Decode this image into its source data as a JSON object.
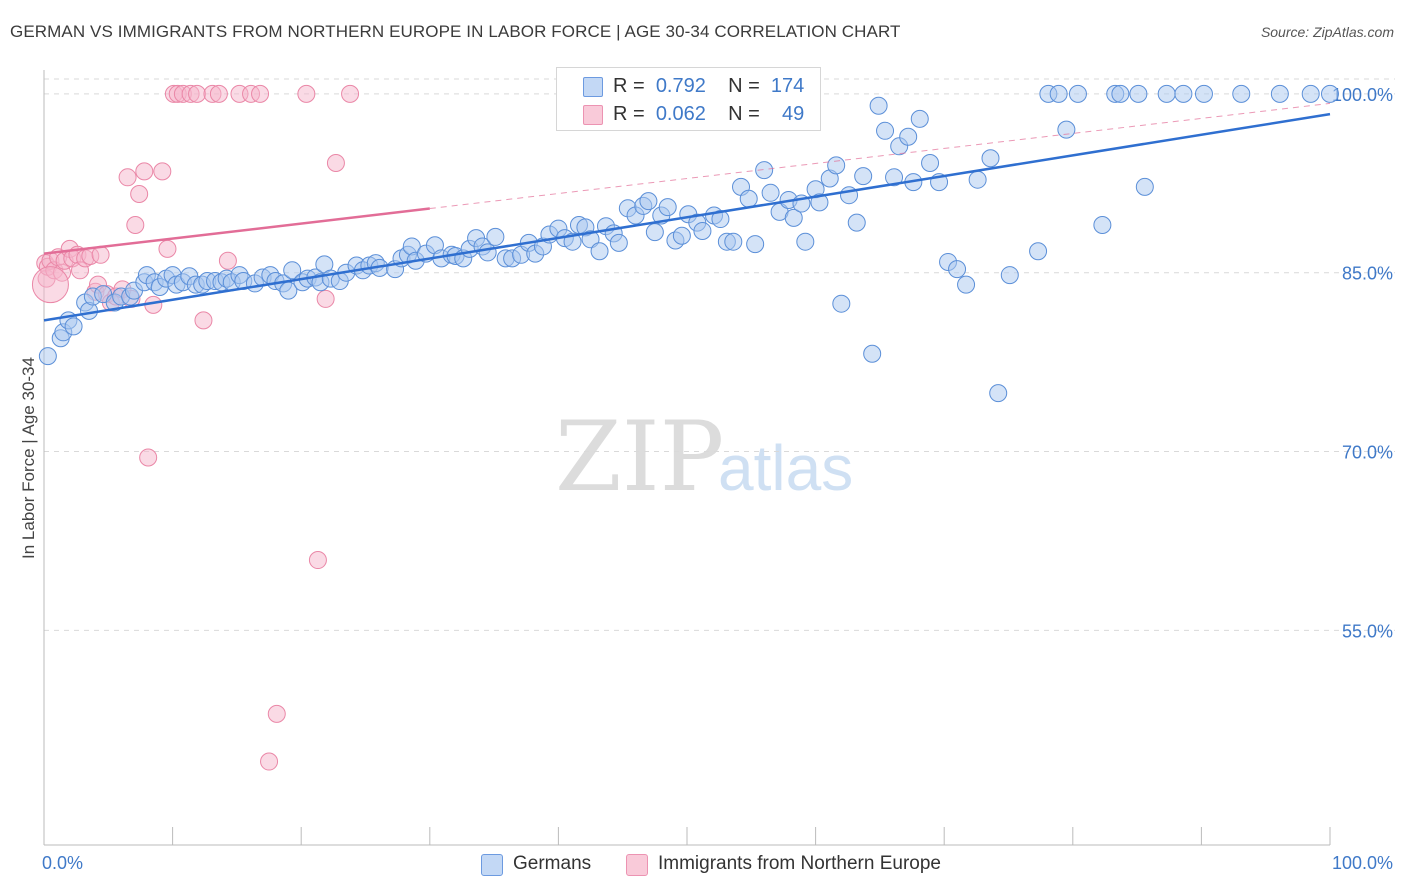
{
  "title": "GERMAN VS IMMIGRANTS FROM NORTHERN EUROPE IN LABOR FORCE | AGE 30-34 CORRELATION CHART",
  "source_prefix": "Source: ",
  "source_name": "ZipAtlas.com",
  "watermark": {
    "zip": "ZIP",
    "atlas": "atlas"
  },
  "legend_top": [
    {
      "r_label": "R =",
      "r_value": "0.792",
      "n_label": "N =",
      "n_value": "174"
    },
    {
      "r_label": "R =",
      "r_value": "0.062",
      "n_label": "N =",
      "n_value": "49"
    }
  ],
  "legend_bottom": [
    "Germans",
    "Immigrants from Northern Europe"
  ],
  "colors": {
    "blue_fill": "#a9c7f0",
    "blue_stroke": "#5b8fd8",
    "blue_line": "#2f6fd0",
    "pink_fill": "#f6b6cb",
    "pink_stroke": "#ea87a7",
    "pink_line": "#e26d97",
    "axis_label": "#3f79c8",
    "grid": "#d9d9d9"
  },
  "chart_data": {
    "type": "scatter",
    "title": "GERMAN VS IMMIGRANTS FROM NORTHERN EUROPE IN LABOR FORCE | AGE 30-34 CORRELATION CHART",
    "xlabel": "",
    "ylabel": "In Labor Force | Age 30-34",
    "xlim": [
      0,
      100
    ],
    "ylim": [
      37,
      102
    ],
    "x_tick_labels": [
      "0.0%",
      "100.0%"
    ],
    "y_ticks": [
      55,
      70,
      85,
      100
    ],
    "y_tick_labels": [
      "55.0%",
      "70.0%",
      "85.0%",
      "100.0%"
    ],
    "grid": true,
    "legend_placement": "bottom",
    "series": [
      {
        "name": "Germans",
        "trend": {
          "x": [
            0,
            100
          ],
          "y": [
            81.0,
            98.3
          ]
        },
        "points": [
          [
            0.3,
            78
          ],
          [
            1.3,
            79.5
          ],
          [
            1.5,
            80
          ],
          [
            1.9,
            81
          ],
          [
            2.3,
            80.5
          ],
          [
            3.2,
            82.5
          ],
          [
            3.5,
            81.8
          ],
          [
            3.8,
            83
          ],
          [
            4.6,
            83.2
          ],
          [
            5.5,
            82.5
          ],
          [
            6,
            83
          ],
          [
            6.7,
            83
          ],
          [
            7,
            83.5
          ],
          [
            7.8,
            84.2
          ],
          [
            8,
            84.8
          ],
          [
            8.6,
            84.2
          ],
          [
            9,
            83.8
          ],
          [
            9.5,
            84.5
          ],
          [
            10,
            84.8
          ],
          [
            10.3,
            84
          ],
          [
            10.8,
            84.2
          ],
          [
            11.3,
            84.7
          ],
          [
            11.8,
            84
          ],
          [
            12.3,
            84
          ],
          [
            12.7,
            84.3
          ],
          [
            13.3,
            84.3
          ],
          [
            13.8,
            84.2
          ],
          [
            14.2,
            84.5
          ],
          [
            14.6,
            84.2
          ],
          [
            15.2,
            84.8
          ],
          [
            15.5,
            84.3
          ],
          [
            16.4,
            84.1
          ],
          [
            17,
            84.6
          ],
          [
            17.6,
            84.8
          ],
          [
            18,
            84.3
          ],
          [
            18.6,
            84.1
          ],
          [
            19,
            83.5
          ],
          [
            19.3,
            85.2
          ],
          [
            20.1,
            84.2
          ],
          [
            20.5,
            84.5
          ],
          [
            21.1,
            84.6
          ],
          [
            21.5,
            84.2
          ],
          [
            21.8,
            85.7
          ],
          [
            22.3,
            84.5
          ],
          [
            23,
            84.3
          ],
          [
            23.5,
            85
          ],
          [
            24.3,
            85.6
          ],
          [
            24.8,
            85.2
          ],
          [
            25.3,
            85.6
          ],
          [
            25.8,
            85.8
          ],
          [
            26.1,
            85.4
          ],
          [
            27.3,
            85.3
          ],
          [
            27.8,
            86.2
          ],
          [
            28.3,
            86.5
          ],
          [
            28.6,
            87.2
          ],
          [
            28.9,
            86
          ],
          [
            29.7,
            86.6
          ],
          [
            30.4,
            87.3
          ],
          [
            30.9,
            86.2
          ],
          [
            31.7,
            86.5
          ],
          [
            32,
            86.4
          ],
          [
            32.6,
            86.2
          ],
          [
            33.1,
            87
          ],
          [
            33.6,
            87.9
          ],
          [
            34.1,
            87.2
          ],
          [
            34.5,
            86.7
          ],
          [
            35.1,
            88
          ],
          [
            35.9,
            86.2
          ],
          [
            36.4,
            86.2
          ],
          [
            37.1,
            86.5
          ],
          [
            37.7,
            87.5
          ],
          [
            38.2,
            86.6
          ],
          [
            38.8,
            87.2
          ],
          [
            39.3,
            88.2
          ],
          [
            40,
            88.7
          ],
          [
            40.5,
            87.9
          ],
          [
            41.1,
            87.6
          ],
          [
            41.6,
            89
          ],
          [
            42.1,
            88.8
          ],
          [
            42.5,
            87.8
          ],
          [
            43.2,
            86.8
          ],
          [
            43.7,
            88.9
          ],
          [
            44.3,
            88.3
          ],
          [
            44.7,
            87.5
          ],
          [
            45.4,
            90.4
          ],
          [
            46,
            89.8
          ],
          [
            46.6,
            90.6
          ],
          [
            47,
            91
          ],
          [
            47.5,
            88.4
          ],
          [
            48,
            89.8
          ],
          [
            48.5,
            90.5
          ],
          [
            49.1,
            87.7
          ],
          [
            49.6,
            88.1
          ],
          [
            50.1,
            89.9
          ],
          [
            50.8,
            89.2
          ],
          [
            51.2,
            88.5
          ],
          [
            52.1,
            89.8
          ],
          [
            52.6,
            89.5
          ],
          [
            53.1,
            87.6
          ],
          [
            53.6,
            87.6
          ],
          [
            54.2,
            92.2
          ],
          [
            54.8,
            91.2
          ],
          [
            55.3,
            87.4
          ],
          [
            56,
            93.6
          ],
          [
            56.5,
            91.7
          ],
          [
            57.2,
            90.1
          ],
          [
            57.9,
            91.1
          ],
          [
            58.3,
            89.6
          ],
          [
            58.9,
            90.8
          ],
          [
            59.2,
            87.6
          ],
          [
            60,
            92
          ],
          [
            60.3,
            90.9
          ],
          [
            61.1,
            92.9
          ],
          [
            61.6,
            94
          ],
          [
            62,
            82.4
          ],
          [
            62.6,
            91.5
          ],
          [
            63.2,
            89.2
          ],
          [
            63.7,
            93.1
          ],
          [
            64.4,
            78.2
          ],
          [
            64.9,
            99
          ],
          [
            65.4,
            96.9
          ],
          [
            66.1,
            93
          ],
          [
            66.5,
            95.6
          ],
          [
            67.2,
            96.4
          ],
          [
            67.6,
            92.6
          ],
          [
            68.1,
            97.9
          ],
          [
            68.9,
            94.2
          ],
          [
            69.6,
            92.6
          ],
          [
            70.3,
            85.9
          ],
          [
            71,
            85.3
          ],
          [
            71.7,
            84
          ],
          [
            72.6,
            92.8
          ],
          [
            73.6,
            94.6
          ],
          [
            74.2,
            74.9
          ],
          [
            75.1,
            84.8
          ],
          [
            77.3,
            86.8
          ],
          [
            78.1,
            100
          ],
          [
            78.9,
            100
          ],
          [
            79.5,
            97
          ],
          [
            80.4,
            100
          ],
          [
            82.3,
            89
          ],
          [
            83.3,
            100
          ],
          [
            83.7,
            100
          ],
          [
            85.1,
            100
          ],
          [
            85.6,
            92.2
          ],
          [
            87.3,
            100
          ],
          [
            88.6,
            100
          ],
          [
            90.2,
            100
          ],
          [
            93.1,
            100
          ],
          [
            96.1,
            100
          ],
          [
            98.5,
            100
          ],
          [
            100,
            100
          ]
        ]
      },
      {
        "name": "Immigrants from Northern Europe",
        "trend": {
          "x": [
            0,
            100
          ],
          "y": [
            86.6,
            99.2
          ]
        },
        "points": [
          [
            0.1,
            85.8
          ],
          [
            0.2,
            84.5
          ],
          [
            0.3,
            85.5
          ],
          [
            0.5,
            86
          ],
          [
            0.8,
            85.2
          ],
          [
            1.1,
            86.3
          ],
          [
            1.4,
            85
          ],
          [
            1.6,
            86
          ],
          [
            2,
            87
          ],
          [
            2.2,
            86.2
          ],
          [
            2.6,
            86.5
          ],
          [
            2.8,
            85.2
          ],
          [
            3.2,
            86.2
          ],
          [
            3.6,
            86.4
          ],
          [
            4,
            83.4
          ],
          [
            4.2,
            84
          ],
          [
            4.4,
            86.5
          ],
          [
            4.9,
            83.2
          ],
          [
            5.2,
            82.5
          ],
          [
            5.6,
            83
          ],
          [
            6.1,
            83.6
          ],
          [
            6.5,
            93
          ],
          [
            6.8,
            82.8
          ],
          [
            7.1,
            89
          ],
          [
            7.4,
            91.6
          ],
          [
            7.8,
            93.5
          ],
          [
            8.1,
            69.5
          ],
          [
            8.5,
            82.3
          ],
          [
            9.2,
            93.5
          ],
          [
            9.6,
            87
          ],
          [
            10.1,
            100
          ],
          [
            10.4,
            100
          ],
          [
            10.8,
            100
          ],
          [
            11.4,
            100
          ],
          [
            11.9,
            100
          ],
          [
            12.4,
            81
          ],
          [
            13.1,
            100
          ],
          [
            13.6,
            100
          ],
          [
            14.3,
            86
          ],
          [
            15.2,
            100
          ],
          [
            16.1,
            100
          ],
          [
            16.8,
            100
          ],
          [
            17.5,
            44
          ],
          [
            18.1,
            48
          ],
          [
            20.4,
            100
          ],
          [
            21.3,
            60.9
          ],
          [
            21.9,
            82.8
          ],
          [
            22.7,
            94.2
          ],
          [
            23.8,
            100
          ]
        ]
      }
    ]
  }
}
